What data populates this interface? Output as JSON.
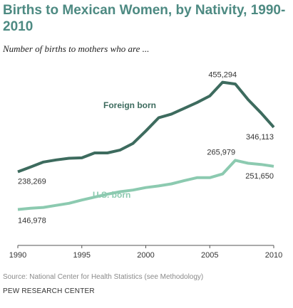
{
  "chart_data": {
    "type": "line",
    "title": "Births to Mexican Women, by Nativity, 1990-2010",
    "subtitle": "Number of births to mothers who are ...",
    "xlabel": "",
    "ylabel": "",
    "xlim": [
      1990,
      2010
    ],
    "ylim": [
      60000,
      520000
    ],
    "x_ticks": [
      1990,
      1995,
      2000,
      2005,
      2010
    ],
    "x": [
      1990,
      1991,
      1992,
      1993,
      1994,
      1995,
      1996,
      1997,
      1998,
      1999,
      2000,
      2001,
      2002,
      2003,
      2004,
      2005,
      2006,
      2007,
      2008,
      2009,
      2010
    ],
    "series": [
      {
        "name": "Foreign born",
        "color": "#3d6b5e",
        "values": [
          238269,
          250000,
          262000,
          267000,
          271000,
          272000,
          284000,
          284000,
          291000,
          307000,
          337000,
          369000,
          378000,
          392000,
          406000,
          422000,
          455294,
          451000,
          413000,
          381000,
          346113
        ]
      },
      {
        "name": "U.S. born",
        "color": "#8ccab0",
        "values": [
          146978,
          150000,
          152000,
          157000,
          162000,
          170000,
          177000,
          184000,
          190000,
          194000,
          200000,
          204000,
          209000,
          217000,
          224000,
          224000,
          233000,
          265979,
          259000,
          256000,
          251650
        ]
      }
    ],
    "annotations": [
      {
        "series": 0,
        "x": 1990,
        "text": "238,269"
      },
      {
        "series": 0,
        "x": 2006,
        "text": "455,294"
      },
      {
        "series": 0,
        "x": 2010,
        "text": "346,113"
      },
      {
        "series": 1,
        "x": 1990,
        "text": "146,978"
      },
      {
        "series": 1,
        "x": 2007,
        "text": "265,979"
      },
      {
        "series": 1,
        "x": 2010,
        "text": "251,650"
      }
    ],
    "grid": false,
    "legend": "inline"
  },
  "source": "Source: National Center for Health Statistics (see Methodology)",
  "organization": "PEW RESEARCH CENTER"
}
